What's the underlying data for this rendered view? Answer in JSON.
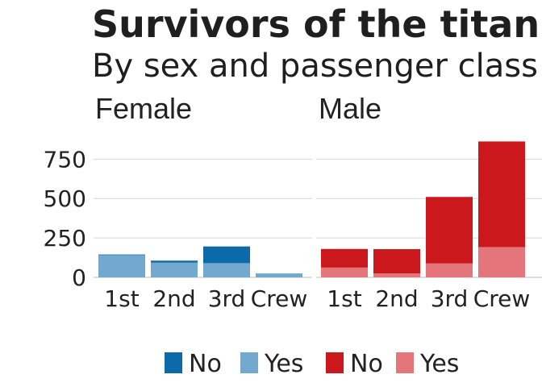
{
  "chart_data": {
    "type": "bar",
    "stacked": true,
    "title": "Survivors of the titanic",
    "subtitle": "By sex and passenger class",
    "categories": [
      "1st",
      "2nd",
      "3rd",
      "Crew"
    ],
    "ylim": [
      0,
      900
    ],
    "yticks": [
      0,
      250,
      500,
      750
    ],
    "grid": true,
    "legend_position": "bottom",
    "facets": [
      {
        "label": "Female",
        "series": [
          {
            "name": "Yes",
            "color": "#74a9cf",
            "values": [
              141,
              93,
              90,
              20
            ]
          },
          {
            "name": "No",
            "color": "#0d6aa8",
            "values": [
              4,
              13,
              106,
              3
            ]
          }
        ]
      },
      {
        "label": "Male",
        "series": [
          {
            "name": "Yes",
            "color": "#e3757b",
            "values": [
              62,
              25,
              88,
              192
            ]
          },
          {
            "name": "No",
            "color": "#cb181d",
            "values": [
              118,
              154,
              422,
              670
            ]
          }
        ]
      }
    ],
    "legend": [
      {
        "label": "No",
        "color": "#0d6aa8"
      },
      {
        "label": "Yes",
        "color": "#74a9cf"
      },
      {
        "label": "No",
        "color": "#cb181d"
      },
      {
        "label": "Yes",
        "color": "#e3757b"
      }
    ]
  }
}
